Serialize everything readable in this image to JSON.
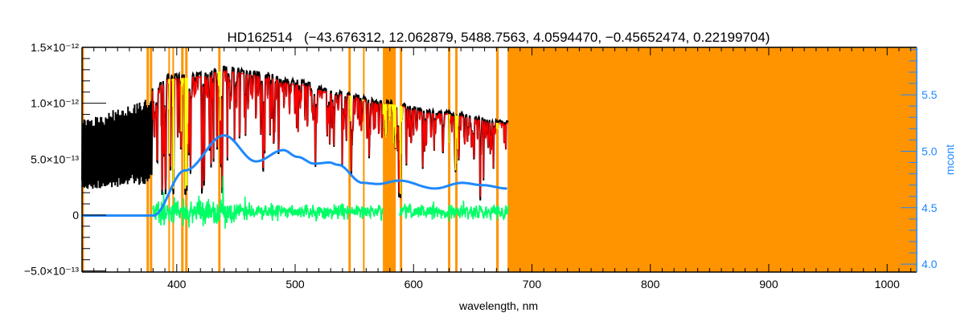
{
  "chart_data": {
    "type": "line",
    "title": "HD162514   (−43.676312, 12.062879, 5488.7563, 4.0594470, −0.45652474, 0.22199704)",
    "xlabel": "wavelength, nm",
    "ylabel_right": "mcont",
    "xlim": [
      320,
      1025
    ],
    "ylim": [
      -5.1e-13,
      1.5e-12
    ],
    "ylim_right": [
      3.93,
      5.92
    ],
    "grid": false,
    "x_ticks": [
      {
        "value": 400,
        "label": "400"
      },
      {
        "value": 500,
        "label": "500"
      },
      {
        "value": 600,
        "label": "600"
      },
      {
        "value": 700,
        "label": "700"
      },
      {
        "value": 800,
        "label": "800"
      },
      {
        "value": 900,
        "label": "900"
      },
      {
        "value": 1000,
        "label": "1000"
      }
    ],
    "y_ticks": [
      {
        "value": 1.5e-12,
        "label": "1.5×10⁻¹²"
      },
      {
        "value": 1e-12,
        "label": "1.0×10⁻¹²"
      },
      {
        "value": 5e-13,
        "label": "5.0×10⁻¹³"
      },
      {
        "value": 0,
        "label": "0"
      },
      {
        "value": -5e-13,
        "label": "−5.0×10⁻¹³"
      }
    ],
    "y_ticks_right": [
      {
        "value": 4.0,
        "label": "4.0"
      },
      {
        "value": 4.5,
        "label": "4.5"
      },
      {
        "value": 5.0,
        "label": "5.0"
      },
      {
        "value": 5.5,
        "label": "5.5"
      }
    ],
    "colors": {
      "observed": "#000000",
      "model": "#ff0000",
      "masked_model": "#ffff00",
      "residual": "#00ff66",
      "mcont": "#1e88ff",
      "mask": "#ff9400"
    },
    "masked_bands_nm": [
      [
        320,
        321.6
      ],
      [
        374.5,
        376.6
      ],
      [
        377.3,
        379.3
      ],
      [
        392.9,
        394.2
      ],
      [
        396.3,
        397.6
      ],
      [
        403.7,
        405.8
      ],
      [
        407.1,
        409.2
      ],
      [
        435,
        437
      ],
      [
        545,
        547
      ],
      [
        557.3,
        558.7
      ],
      [
        574.1,
        585
      ],
      [
        588.4,
        590.4
      ],
      [
        629.1,
        631.1
      ],
      [
        635.2,
        637.2
      ],
      [
        669.8,
        671.9
      ],
      [
        679.4,
        1025
      ]
    ],
    "observed_continuum": {
      "x": [
        380,
        395,
        420,
        440,
        470,
        500,
        540,
        575,
        620,
        680
      ],
      "y": [
        1.15e-12,
        1.25e-12,
        1.27e-12,
        1.32e-12,
        1.28e-12,
        1.2e-12,
        1.1e-12,
        1.02e-12,
        9.3e-13,
        8.4e-13
      ]
    },
    "observed_unfitted_range": {
      "x": [
        320,
        379
      ],
      "upper": [
        8.5e-13,
        1.05e-12
      ],
      "lower": [
        2.2e-13,
        2.8e-13
      ]
    },
    "strong_lines": {
      "x": [
        397.0,
        410.2,
        434.0,
        486.1,
        517.3,
        527.0,
        589.0,
        656.3
      ],
      "depth": [
        0.65,
        0.6,
        0.6,
        0.6,
        0.45,
        0.4,
        0.62,
        0.78
      ]
    },
    "residual_range": {
      "x": [
        380,
        680
      ],
      "gap": [
        574,
        588
      ],
      "center": 3e-14,
      "scatter": 4e-14
    },
    "mcont": {
      "x": [
        320,
        380,
        407,
        440,
        467,
        490,
        502,
        516,
        529,
        536,
        557,
        570,
        588,
        618,
        641,
        658,
        679
      ],
      "y": [
        4.43,
        4.43,
        4.83,
        5.14,
        4.91,
        5.01,
        4.95,
        4.89,
        4.9,
        4.88,
        4.72,
        4.71,
        4.74,
        4.67,
        4.72,
        4.7,
        4.67
      ]
    }
  }
}
